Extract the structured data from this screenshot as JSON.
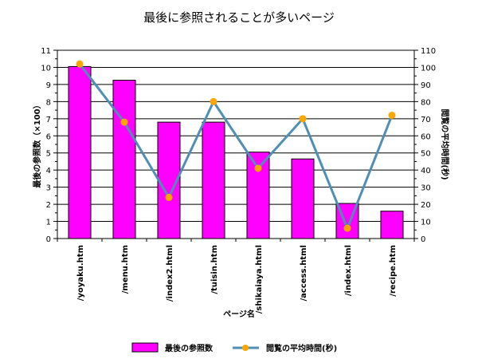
{
  "chart_data": {
    "type": "bar+line",
    "title": "最後に参照されることが多いページ",
    "xlabel": "ページ名",
    "ylabel_left": "最後の参照数（×100）",
    "ylabel_right": "閲覧の平均時間(秒)",
    "categories": [
      "/yoyaku.htm",
      "/menu.htm",
      "/index2.html",
      "/tuisin.htm",
      "/shikaiaya.html",
      "/access.html",
      "/index.html",
      "/recipe.htm"
    ],
    "ylim_left": [
      0,
      11
    ],
    "ylim_right": [
      0,
      110
    ],
    "yticks_left": [
      "0",
      "1",
      "2",
      "3",
      "4",
      "5",
      "6",
      "7",
      "8",
      "9",
      "10",
      "11"
    ],
    "yticks_right": [
      "0",
      "10",
      "20",
      "30",
      "40",
      "50",
      "60",
      "70",
      "80",
      "90",
      "100",
      "110"
    ],
    "grid": true,
    "legend_position": "bottom",
    "series": [
      {
        "name": "最後の参照数",
        "kind": "bar",
        "axis": "left",
        "color": "#ff00ff",
        "values": [
          10.05,
          9.25,
          6.8,
          6.8,
          5.05,
          4.65,
          2.05,
          1.6
        ]
      },
      {
        "name": "閲覧の平均時間(秒)",
        "kind": "line",
        "axis": "right",
        "color": "#4f8fb5",
        "marker_color": "#ffa500",
        "values": [
          102,
          68,
          24,
          80,
          41,
          70,
          6,
          72
        ]
      }
    ]
  }
}
